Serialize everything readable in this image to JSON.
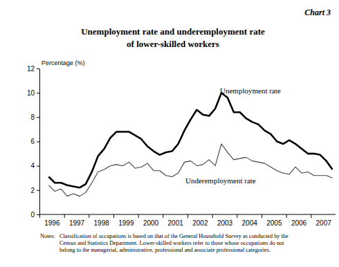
{
  "chart_data": {
    "type": "line",
    "chart_number": "Chart 3",
    "title": [
      "Unemployment rate and underemployment rate",
      "of lower-skilled workers"
    ],
    "y_label": "Percentage (%)",
    "categories": [
      "1996",
      null,
      null,
      null,
      "1997",
      null,
      null,
      null,
      "1998",
      null,
      null,
      null,
      "1999",
      null,
      null,
      null,
      "2000",
      null,
      null,
      null,
      "2001",
      null,
      null,
      null,
      "2002",
      null,
      null,
      null,
      "2003",
      null,
      null,
      null,
      "2004",
      null,
      null,
      null,
      "2005",
      null,
      null,
      null,
      "2006",
      null,
      null,
      null,
      "2007",
      null,
      null
    ],
    "series": [
      {
        "name": "Unemployment rate",
        "color": "#000000",
        "values": [
          3.1,
          2.6,
          2.6,
          2.4,
          2.3,
          2.2,
          2.5,
          3.5,
          4.8,
          5.4,
          6.3,
          6.8,
          6.8,
          6.8,
          6.5,
          6.2,
          5.6,
          5.2,
          4.9,
          5.1,
          5.2,
          5.8,
          6.9,
          7.8,
          8.6,
          8.2,
          8.1,
          8.7,
          10.0,
          9.6,
          8.4,
          8.4,
          7.9,
          7.6,
          7.4,
          6.9,
          6.6,
          6.0,
          5.8,
          6.1,
          5.8,
          5.4,
          5.0,
          5.0,
          4.9,
          4.4,
          3.7
        ]
      },
      {
        "name": "Underemployment rate",
        "color": "#404040",
        "values": [
          2.4,
          1.9,
          2.1,
          1.5,
          1.7,
          1.5,
          1.8,
          2.6,
          3.5,
          3.7,
          4.0,
          4.1,
          4.0,
          4.3,
          3.8,
          3.9,
          4.2,
          3.6,
          3.6,
          3.2,
          3.1,
          3.4,
          4.3,
          4.4,
          4.0,
          4.1,
          4.5,
          4.0,
          5.8,
          5.1,
          4.5,
          4.6,
          4.7,
          4.4,
          4.3,
          4.2,
          3.9,
          3.6,
          3.4,
          3.3,
          3.9,
          3.4,
          3.5,
          3.2,
          3.2,
          3.2,
          3.0
        ]
      }
    ],
    "ylim": [
      0,
      12
    ],
    "yticks": [
      0,
      2,
      4,
      6,
      8,
      10,
      12
    ],
    "grid": false,
    "notes": [
      "Notes:",
      "Classification of occupations is based on that of the General Household Survey as conducted by the",
      "Census and Statistics Department.  Lower-skilled workers refer to those whose occupations do not",
      "belong to the managerial, administrative, professional and associate professional categories."
    ]
  }
}
